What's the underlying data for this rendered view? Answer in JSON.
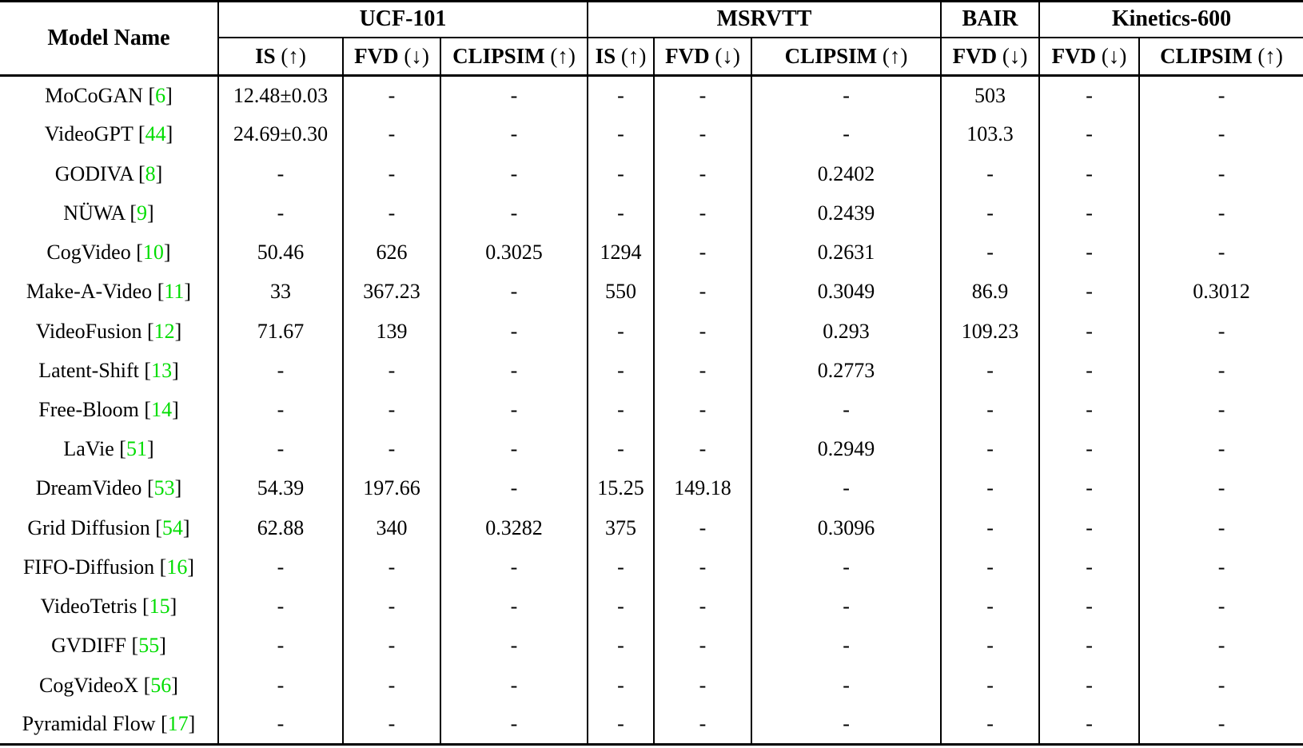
{
  "table": {
    "model_col_header": "Model Name",
    "groups": [
      {
        "label": "UCF-101",
        "metrics": [
          {
            "name": "IS",
            "dir": "(↑)"
          },
          {
            "name": "FVD",
            "dir": "(↓)"
          },
          {
            "name": "CLIPSIM",
            "dir": "(↑)"
          }
        ]
      },
      {
        "label": "MSRVTT",
        "metrics": [
          {
            "name": "IS",
            "dir": "(↑)"
          },
          {
            "name": "FVD",
            "dir": "(↓)"
          },
          {
            "name": "CLIPSIM",
            "dir": "(↑)"
          }
        ]
      },
      {
        "label": "BAIR",
        "metrics": [
          {
            "name": "FVD",
            "dir": "(↓)"
          }
        ]
      },
      {
        "label": "Kinetics-600",
        "metrics": [
          {
            "name": "FVD",
            "dir": "(↓)"
          },
          {
            "name": "CLIPSIM",
            "dir": "(↑)"
          }
        ]
      }
    ],
    "rows": [
      {
        "model": "MoCoGAN",
        "cite": "6",
        "values": [
          "12.48±0.03",
          "-",
          "-",
          "-",
          "-",
          "-",
          "503",
          "-",
          "-"
        ]
      },
      {
        "model": "VideoGPT",
        "cite": "44",
        "values": [
          "24.69±0.30",
          "-",
          "-",
          "-",
          "-",
          "-",
          "103.3",
          "-",
          "-"
        ]
      },
      {
        "model": "GODIVA",
        "cite": "8",
        "values": [
          "-",
          "-",
          "-",
          "-",
          "-",
          "0.2402",
          "-",
          "-",
          "-"
        ]
      },
      {
        "model": "NÜWA",
        "cite": "9",
        "values": [
          "-",
          "-",
          "-",
          "-",
          "-",
          "0.2439",
          "-",
          "-",
          "-"
        ]
      },
      {
        "model": "CogVideo",
        "cite": "10",
        "values": [
          "50.46",
          "626",
          "0.3025",
          "1294",
          "-",
          "0.2631",
          "-",
          "-",
          "-"
        ]
      },
      {
        "model": "Make-A-Video",
        "cite": "11",
        "values": [
          "33",
          "367.23",
          "-",
          "550",
          "-",
          "0.3049",
          "86.9",
          "-",
          "0.3012"
        ]
      },
      {
        "model": "VideoFusion",
        "cite": "12",
        "values": [
          "71.67",
          "139",
          "-",
          "-",
          "-",
          "0.293",
          "109.23",
          "-",
          "-"
        ]
      },
      {
        "model": "Latent-Shift",
        "cite": "13",
        "values": [
          "-",
          "-",
          "-",
          "-",
          "-",
          "0.2773",
          "-",
          "-",
          "-"
        ]
      },
      {
        "model": "Free-Bloom",
        "cite": "14",
        "values": [
          "-",
          "-",
          "-",
          "-",
          "-",
          "-",
          "-",
          "-",
          "-"
        ]
      },
      {
        "model": "LaVie",
        "cite": "51",
        "values": [
          "-",
          "-",
          "-",
          "-",
          "-",
          "0.2949",
          "-",
          "-",
          "-"
        ]
      },
      {
        "model": "DreamVideo",
        "cite": "53",
        "values": [
          "54.39",
          "197.66",
          "-",
          "15.25",
          "149.18",
          "-",
          "-",
          "-",
          "-"
        ]
      },
      {
        "model": "Grid Diffusion",
        "cite": "54",
        "values": [
          "62.88",
          "340",
          "0.3282",
          "375",
          "-",
          "0.3096",
          "-",
          "-",
          "-"
        ]
      },
      {
        "model": "FIFO-Diffusion",
        "cite": "16",
        "values": [
          "-",
          "-",
          "-",
          "-",
          "-",
          "-",
          "-",
          "-",
          "-"
        ]
      },
      {
        "model": "VideoTetris",
        "cite": "15",
        "values": [
          "-",
          "-",
          "-",
          "-",
          "-",
          "-",
          "-",
          "-",
          "-"
        ]
      },
      {
        "model": "GVDIFF",
        "cite": "55",
        "values": [
          "-",
          "-",
          "-",
          "-",
          "-",
          "-",
          "-",
          "-",
          "-"
        ]
      },
      {
        "model": "CogVideoX",
        "cite": "56",
        "values": [
          "-",
          "-",
          "-",
          "-",
          "-",
          "-",
          "-",
          "-",
          "-"
        ]
      },
      {
        "model": "Pyramidal Flow",
        "cite": "17",
        "values": [
          "-",
          "-",
          "-",
          "-",
          "-",
          "-",
          "-",
          "-",
          "-"
        ]
      }
    ],
    "colors": {
      "citation_green": "#00dd00",
      "text_black": "#000000"
    }
  }
}
